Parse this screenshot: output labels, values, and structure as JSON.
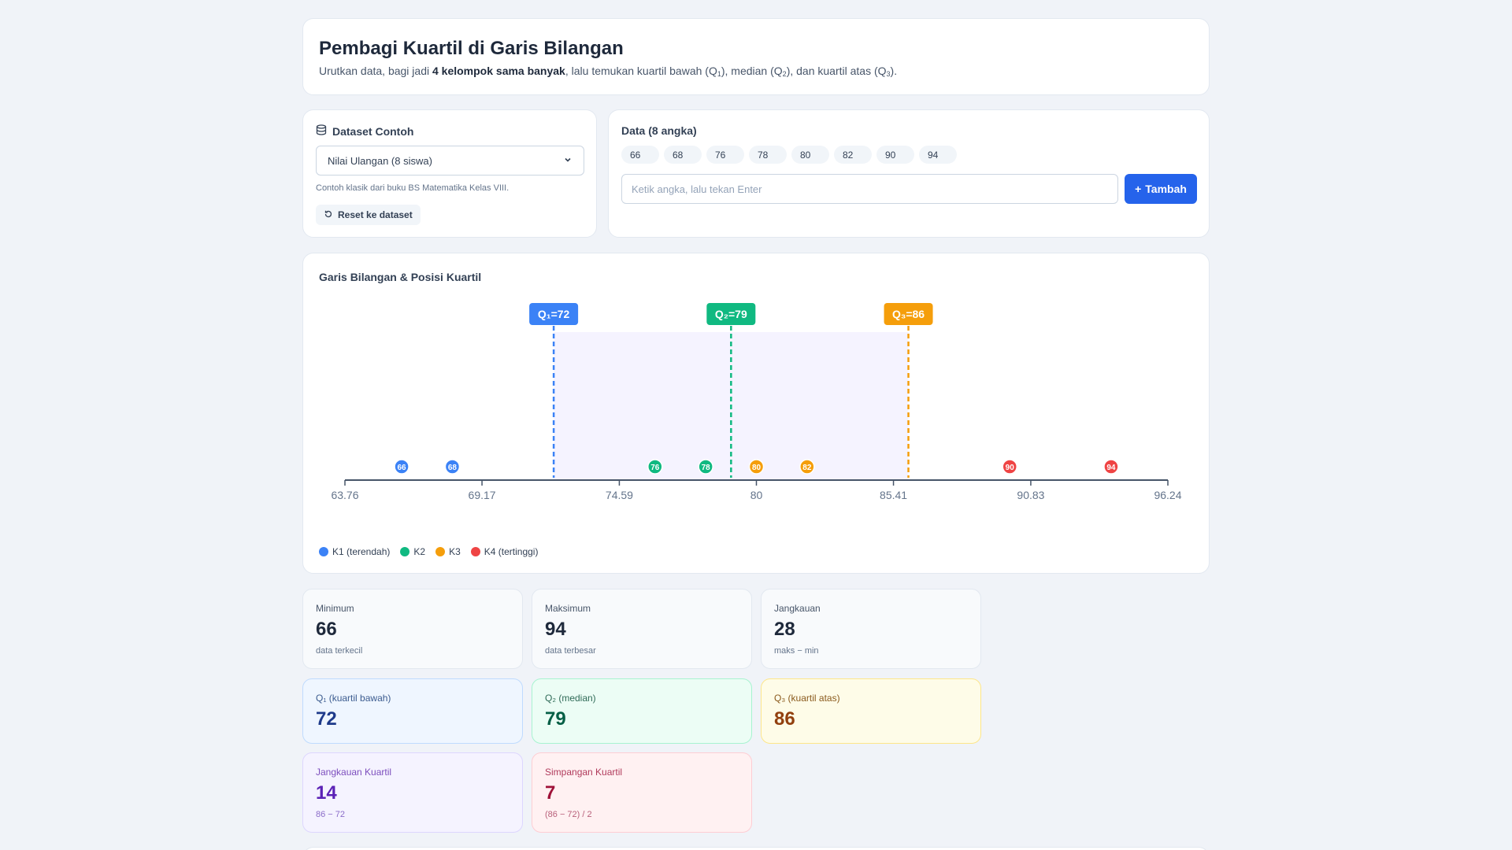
{
  "header": {
    "title": "Pembagi Kuartil di Garis Bilangan",
    "sub_prefix": "Urutkan data, bagi jadi ",
    "sub_bold": "4 kelompok sama banyak",
    "sub_mid1": ", lalu temukan kuartil bawah (Q",
    "sub_q1": "1",
    "sub_mid2": "), median (Q",
    "sub_q2": "2",
    "sub_mid3": "), dan kuartil atas (Q",
    "sub_q3": "3",
    "sub_end": ")."
  },
  "dataset": {
    "title": "Dataset Contoh",
    "icon": "database-icon",
    "selected": "Nilai Ulangan (8 siswa)",
    "hint": "Contoh klasik dari buku BS Matematika Kelas VIII.",
    "reset_label": "Reset ke dataset"
  },
  "data_panel": {
    "title": "Data (8 angka)",
    "values": [
      "66",
      "68",
      "76",
      "78",
      "80",
      "82",
      "90",
      "94"
    ],
    "input_placeholder": "Ketik angka, lalu tekan Enter",
    "add_label": "Tambah"
  },
  "chart_data": {
    "type": "scatter",
    "title": "Garis Bilangan & Posisi Kuartil",
    "axis_range": [
      63.76,
      96.24
    ],
    "tick_labels": [
      "63.76",
      "69.17",
      "74.59",
      "80",
      "85.41",
      "90.83",
      "96.24"
    ],
    "tick_values": [
      63.76,
      69.17,
      74.59,
      80,
      85.41,
      90.83,
      96.24
    ],
    "points": [
      {
        "value": 66,
        "label": "66",
        "group": 1
      },
      {
        "value": 68,
        "label": "68",
        "group": 1
      },
      {
        "value": 76,
        "label": "76",
        "group": 2
      },
      {
        "value": 78,
        "label": "78",
        "group": 2
      },
      {
        "value": 80,
        "label": "80",
        "group": 3
      },
      {
        "value": 82,
        "label": "82",
        "group": 3
      },
      {
        "value": 90,
        "label": "90",
        "group": 4
      },
      {
        "value": 94,
        "label": "94",
        "group": 4
      }
    ],
    "quartiles": [
      {
        "value": 72,
        "label": "Q₁=72",
        "color": "#3b82f6"
      },
      {
        "value": 79,
        "label": "Q₂=79",
        "color": "#10b981"
      },
      {
        "value": 86,
        "label": "Q₃=86",
        "color": "#f59e0b"
      }
    ],
    "group_colors": [
      "#3b82f6",
      "#10b981",
      "#f59e0b",
      "#ef4444"
    ],
    "legend": [
      "K1 (terendah)",
      "K2",
      "K3",
      "K4 (tertinggi)"
    ]
  },
  "stats": {
    "min": {
      "label": "Minimum",
      "value": "66",
      "note": "data terkecil"
    },
    "max": {
      "label": "Maksimum",
      "value": "94",
      "note": "data terbesar"
    },
    "range": {
      "label": "Jangkauan",
      "value": "28",
      "note": "maks − min"
    },
    "q1": {
      "label": "Q₁ (kuartil bawah)",
      "value": "72"
    },
    "q2": {
      "label": "Q₂ (median)",
      "value": "79"
    },
    "q3": {
      "label": "Q₃ (kuartil atas)",
      "value": "86"
    },
    "iqr": {
      "label": "Jangkauan Kuartil",
      "value": "14",
      "note": "86 − 72"
    },
    "qd": {
      "label": "Simpangan Kuartil",
      "value": "7",
      "note": "(86 − 72) / 2"
    }
  }
}
